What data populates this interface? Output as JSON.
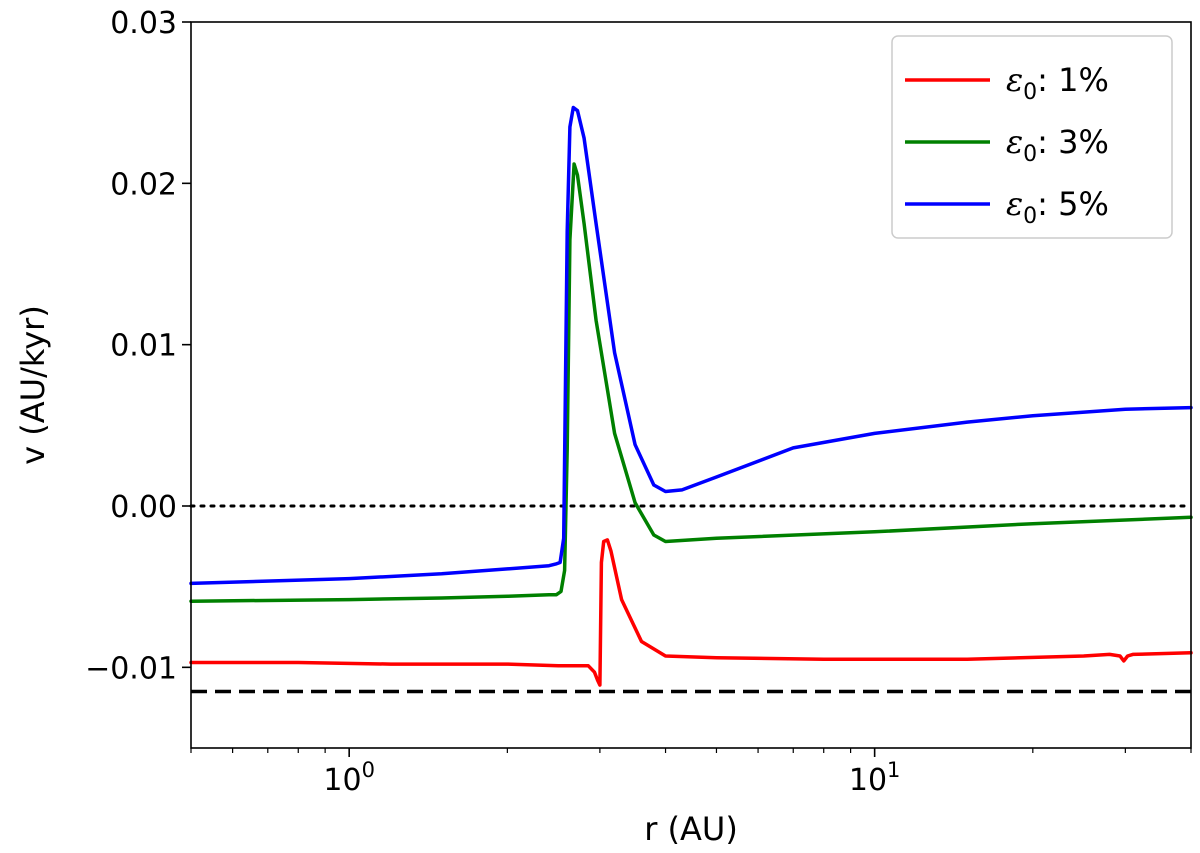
{
  "chart_data": {
    "type": "line",
    "title": "",
    "xlabel": "r (AU)",
    "ylabel": "v (AU/kyr)",
    "xscale": "log",
    "xlim": [
      0.5,
      40
    ],
    "ylim": [
      -0.015,
      0.03
    ],
    "grid": false,
    "legend_placement": "top-right",
    "x_ticks": [
      {
        "value": 1,
        "base": "10",
        "exp": "0"
      },
      {
        "value": 10,
        "base": "10",
        "exp": "1"
      }
    ],
    "y_ticks": [
      {
        "value": 0.03,
        "label": "0.03"
      },
      {
        "value": 0.02,
        "label": "0.02"
      },
      {
        "value": 0.01,
        "label": "0.01"
      },
      {
        "value": 0.0,
        "label": "0.00"
      },
      {
        "value": -0.01,
        "label": "−0.01"
      }
    ],
    "series": [
      {
        "name": "ε₀: 1%",
        "legend_symbol": "ε",
        "legend_subscript": "0",
        "legend_value": ": 1%",
        "color": "#ff0000",
        "x": [
          0.5,
          0.8,
          1.2,
          2.0,
          2.5,
          2.85,
          2.93,
          2.97,
          3.0,
          3.02,
          3.05,
          3.1,
          3.15,
          3.3,
          3.6,
          4.0,
          5.0,
          8.0,
          15.0,
          25.0,
          28.0,
          29.3,
          29.8,
          30.3,
          31.0,
          40.0
        ],
        "y": [
          -0.0097,
          -0.0097,
          -0.0098,
          -0.0098,
          -0.0099,
          -0.0099,
          -0.0103,
          -0.0108,
          -0.0111,
          -0.0035,
          -0.0022,
          -0.0021,
          -0.0028,
          -0.0058,
          -0.0084,
          -0.0093,
          -0.0094,
          -0.0095,
          -0.0095,
          -0.0093,
          -0.0092,
          -0.0093,
          -0.0096,
          -0.0093,
          -0.0092,
          -0.0091
        ]
      },
      {
        "name": "ε₀: 3%",
        "legend_symbol": "ε",
        "legend_subscript": "0",
        "legend_value": ": 3%",
        "color": "#008000",
        "x": [
          0.5,
          1.0,
          1.5,
          2.0,
          2.4,
          2.48,
          2.53,
          2.57,
          2.6,
          2.63,
          2.68,
          2.72,
          2.8,
          2.95,
          3.2,
          3.5,
          3.8,
          4.0,
          5.0,
          10.0,
          20.0,
          40.0
        ],
        "y": [
          -0.0059,
          -0.0058,
          -0.0057,
          -0.0056,
          -0.0055,
          -0.0055,
          -0.0053,
          -0.004,
          0.0035,
          0.0165,
          0.0212,
          0.0205,
          0.0175,
          0.0115,
          0.0045,
          0.0002,
          -0.0018,
          -0.0022,
          -0.002,
          -0.0016,
          -0.0011,
          -0.0007
        ]
      },
      {
        "name": "ε₀: 5%",
        "legend_symbol": "ε",
        "legend_subscript": "0",
        "legend_value": ": 5%",
        "color": "#0000ff",
        "x": [
          0.5,
          1.0,
          1.5,
          2.0,
          2.4,
          2.47,
          2.52,
          2.56,
          2.6,
          2.63,
          2.67,
          2.72,
          2.8,
          2.95,
          3.2,
          3.5,
          3.8,
          4.0,
          4.3,
          5.0,
          7.0,
          10.0,
          15.0,
          20.0,
          30.0,
          40.0
        ],
        "y": [
          -0.0048,
          -0.0045,
          -0.0042,
          -0.0039,
          -0.0037,
          -0.0036,
          -0.0035,
          -0.002,
          0.017,
          0.0235,
          0.0247,
          0.0245,
          0.0228,
          0.0175,
          0.0095,
          0.0038,
          0.0013,
          0.0009,
          0.001,
          0.0018,
          0.0036,
          0.0045,
          0.0052,
          0.0056,
          0.006,
          0.0061
        ]
      }
    ],
    "reference_lines": [
      {
        "y": 0.0,
        "style": "dotted",
        "color": "#000000"
      },
      {
        "y": -0.0115,
        "style": "dashed",
        "color": "#000000"
      }
    ]
  }
}
